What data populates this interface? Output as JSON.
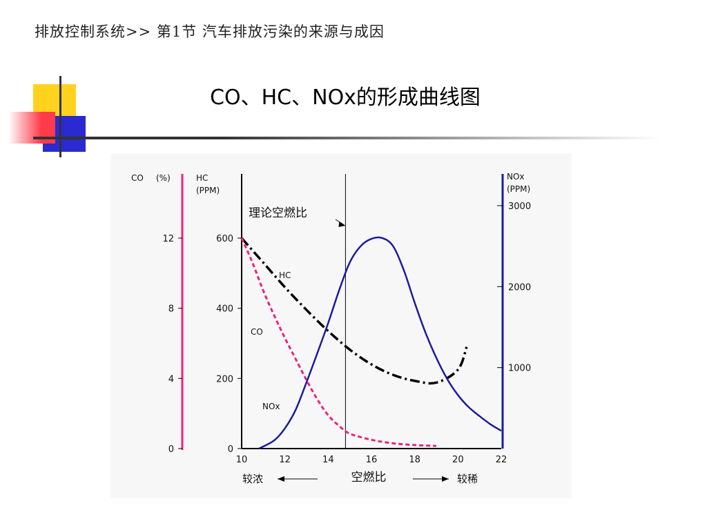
{
  "header": {
    "breadcrumb": "排放控制系统>> 第1节 汽车排放污染的来源与成因"
  },
  "slide": {
    "title": "CO、HC、NOx的形成曲线图"
  },
  "colors": {
    "co_curve": "#ee2277",
    "hc_curve": "#000000",
    "nox_curve": "#1a1aa0",
    "co_axis": "#ee2277",
    "nox_axis": "#1a1aa0",
    "deco_yellow": "#ffd21e",
    "deco_red": "#ff3b4a",
    "deco_blue": "#2a2ad0"
  },
  "chart_data": {
    "type": "line",
    "x": {
      "label": "空燃比",
      "ticks": [
        10,
        12,
        14,
        16,
        18,
        20,
        22
      ],
      "range": [
        10,
        22
      ],
      "left_label": "较浓",
      "right_label": "较稀"
    },
    "axes": {
      "co": {
        "label": "CO",
        "unit": "(%)",
        "ticks": [
          0,
          4,
          8,
          12
        ],
        "range": [
          0,
          12
        ]
      },
      "hc": {
        "label": "HC",
        "unit": "(PPM)",
        "ticks": [
          0,
          200,
          400,
          600
        ],
        "range": [
          0,
          600
        ]
      },
      "nox": {
        "label": "NOx",
        "unit": "(PPM)",
        "ticks": [
          1000,
          2000,
          3000
        ],
        "range": [
          0,
          3000
        ]
      }
    },
    "annotation": {
      "text": "理论空燃比",
      "x": 14.8
    },
    "series": [
      {
        "name": "HC",
        "axis": "hc",
        "style": "dashdot",
        "x": [
          10,
          11,
          12,
          13,
          14,
          15,
          16,
          17,
          18,
          19,
          20,
          20.4
        ],
        "y": [
          600,
          530,
          460,
          395,
          335,
          282,
          240,
          210,
          193,
          188,
          225,
          290
        ]
      },
      {
        "name": "CO",
        "axis": "co",
        "style": "dashed",
        "x": [
          10,
          10.5,
          11,
          11.5,
          12,
          12.5,
          13,
          13.5,
          14,
          14.5,
          15,
          16,
          17,
          18,
          19
        ],
        "y": [
          12,
          10.6,
          9.0,
          7.6,
          6.3,
          5.1,
          3.9,
          2.8,
          1.9,
          1.3,
          0.85,
          0.5,
          0.3,
          0.2,
          0.15
        ]
      },
      {
        "name": "NOx",
        "axis": "nox",
        "style": "solid",
        "x": [
          10.8,
          11.5,
          12,
          12.5,
          13,
          13.5,
          14,
          14.5,
          15,
          15.5,
          16,
          16.5,
          17,
          17.5,
          18,
          18.5,
          19,
          19.5,
          20,
          20.5,
          21,
          21.5,
          22
        ],
        "y": [
          0,
          100,
          250,
          480,
          820,
          1180,
          1550,
          1950,
          2300,
          2500,
          2590,
          2600,
          2500,
          2200,
          1800,
          1430,
          1120,
          860,
          660,
          510,
          400,
          300,
          220
        ]
      }
    ]
  }
}
